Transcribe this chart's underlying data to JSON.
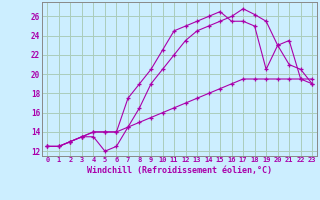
{
  "xlabel": "Windchill (Refroidissement éolien,°C)",
  "bg_color": "#cceeff",
  "grid_color": "#aaccbb",
  "line_color": "#aa00aa",
  "xlim": [
    -0.5,
    23.4
  ],
  "ylim": [
    11.5,
    27.5
  ],
  "yticks": [
    12,
    14,
    16,
    18,
    20,
    22,
    24,
    26
  ],
  "xticks": [
    0,
    1,
    2,
    3,
    4,
    5,
    6,
    7,
    8,
    9,
    10,
    11,
    12,
    13,
    14,
    15,
    16,
    17,
    18,
    19,
    20,
    21,
    22,
    23
  ],
  "line1_x": [
    0,
    1,
    2,
    3,
    4,
    5,
    6,
    7,
    8,
    9,
    10,
    11,
    12,
    13,
    14,
    15,
    16,
    17,
    18,
    19,
    20,
    21,
    22,
    23
  ],
  "line1_y": [
    12.5,
    12.5,
    13.0,
    13.5,
    13.5,
    12.0,
    12.5,
    14.5,
    16.5,
    19.0,
    20.5,
    22.0,
    23.5,
    24.5,
    25.0,
    25.5,
    26.0,
    26.8,
    26.2,
    25.5,
    23.0,
    21.0,
    20.5,
    19.0
  ],
  "line2_x": [
    0,
    1,
    2,
    3,
    4,
    5,
    6,
    7,
    8,
    9,
    10,
    11,
    12,
    13,
    14,
    15,
    16,
    17,
    18,
    19,
    20,
    21,
    22,
    23
  ],
  "line2_y": [
    12.5,
    12.5,
    13.0,
    13.5,
    14.0,
    14.0,
    14.0,
    17.5,
    19.0,
    20.5,
    22.5,
    24.5,
    25.0,
    25.5,
    26.0,
    26.5,
    25.5,
    25.5,
    25.0,
    20.5,
    23.0,
    23.5,
    19.5,
    19.0
  ],
  "line3_x": [
    0,
    1,
    2,
    3,
    4,
    5,
    6,
    7,
    8,
    9,
    10,
    11,
    12,
    13,
    14,
    15,
    16,
    17,
    18,
    19,
    20,
    21,
    22,
    23
  ],
  "line3_y": [
    12.5,
    12.5,
    13.0,
    13.5,
    14.0,
    14.0,
    14.0,
    14.5,
    15.0,
    15.5,
    16.0,
    16.5,
    17.0,
    17.5,
    18.0,
    18.5,
    19.0,
    19.5,
    19.5,
    19.5,
    19.5,
    19.5,
    19.5,
    19.5
  ]
}
